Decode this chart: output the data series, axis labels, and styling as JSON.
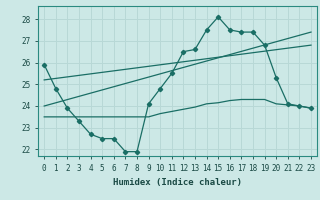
{
  "xlabel": "Humidex (Indice chaleur)",
  "bg_color": "#cce8e6",
  "grid_color": "#b8d8d6",
  "line_color": "#1a6e65",
  "xlim": [
    -0.5,
    23.5
  ],
  "ylim": [
    21.7,
    28.6
  ],
  "yticks": [
    22,
    23,
    24,
    25,
    26,
    27,
    28
  ],
  "xticks": [
    0,
    1,
    2,
    3,
    4,
    5,
    6,
    7,
    8,
    9,
    10,
    11,
    12,
    13,
    14,
    15,
    16,
    17,
    18,
    19,
    20,
    21,
    22,
    23
  ],
  "line1_x": [
    0,
    1,
    2,
    3,
    4,
    5,
    6,
    7,
    8,
    9,
    10,
    11,
    12,
    13,
    14,
    15,
    16,
    17,
    18,
    19,
    20,
    21,
    22,
    23
  ],
  "line1_y": [
    25.9,
    24.8,
    23.9,
    23.3,
    22.7,
    22.5,
    22.5,
    21.9,
    21.9,
    24.1,
    24.8,
    25.5,
    26.5,
    26.6,
    27.5,
    28.1,
    27.5,
    27.4,
    27.4,
    26.8,
    25.3,
    24.1,
    24.0,
    23.9
  ],
  "line2_x": [
    0,
    1,
    2,
    3,
    4,
    5,
    6,
    7,
    8,
    9,
    10,
    11,
    12,
    13,
    14,
    15,
    16,
    17,
    18,
    19,
    20,
    21,
    22,
    23
  ],
  "line2_y": [
    23.5,
    23.5,
    23.5,
    23.5,
    23.5,
    23.5,
    23.5,
    23.5,
    23.5,
    23.5,
    23.65,
    23.75,
    23.85,
    23.95,
    24.1,
    24.15,
    24.25,
    24.3,
    24.3,
    24.3,
    24.1,
    24.05,
    24.0,
    23.9
  ],
  "line3_x": [
    0,
    23
  ],
  "line3_y": [
    24.0,
    27.4
  ],
  "line4_x": [
    0,
    23
  ],
  "line4_y": [
    25.2,
    26.8
  ]
}
